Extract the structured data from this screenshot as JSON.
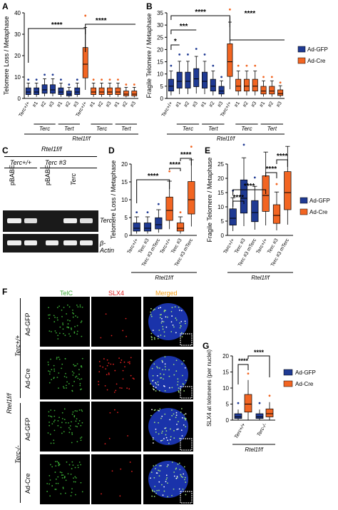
{
  "colors": {
    "gfp": "#1f3a93",
    "cre": "#f26522",
    "cre_dot": "#f26522",
    "gfp_dot": "#1f3a93"
  },
  "panelA": {
    "letter": "A",
    "ylabel": "Telomere Loss / Metaphase",
    "yticks": [
      "0",
      "10",
      "20",
      "30",
      "40"
    ],
    "xlabels": [
      "Terc+/+",
      "#1",
      "#2",
      "#3",
      "#1",
      "#2",
      "#3",
      "Terc+/+",
      "#1",
      "#2",
      "#3",
      "#1",
      "#2",
      "#3"
    ],
    "groups": [
      "Terc",
      "Tert",
      "Terc",
      "Tert"
    ],
    "genotype": "Rtel1f/f",
    "sig": [
      "****",
      "****"
    ]
  },
  "panelB": {
    "letter": "B",
    "ylabel": "Fragile Telomere / Metaphase",
    "yticks": [
      "0",
      "5",
      "10",
      "15",
      "20",
      "25",
      "30",
      "35"
    ],
    "xlabels": [
      "Terc+/+",
      "#1",
      "#2",
      "#3",
      "#1",
      "#2",
      "#3",
      "Terc+/+",
      "#1",
      "#2",
      "#3",
      "#1",
      "#2",
      "#3"
    ],
    "groups": [
      "Terc",
      "Tert",
      "Terc",
      "Tert"
    ],
    "genotype": "Rtel1f/f",
    "sig": [
      "*",
      "***",
      "****",
      "****"
    ],
    "legend": [
      "Ad-GFP",
      "Ad-Cre"
    ]
  },
  "panelC": {
    "letter": "C",
    "genotype": "Rtel1f/f",
    "col1": "Terc+/+",
    "col2": "Terc #3",
    "lanes": [
      "pBABE",
      "pBABE",
      "Terc"
    ],
    "bands": [
      "Terc",
      "β-Actin"
    ]
  },
  "panelD": {
    "letter": "D",
    "ylabel": "Telomere Loss / Metaphase",
    "yticks": [
      "0",
      "5",
      "10",
      "15",
      "20"
    ],
    "xlabels": [
      "Terc+/+",
      "Terc #3",
      "Terc #3 mTerc",
      "Terc+/+",
      "Terc #3",
      "Terc #3 mTerc"
    ],
    "genotype": "Rtel1f/f",
    "sig": [
      "****",
      "****",
      "****"
    ]
  },
  "panelE": {
    "letter": "E",
    "ylabel": "Fragile Telomere / Metaphase",
    "yticks": [
      "0",
      "5",
      "10",
      "15",
      "20",
      "25"
    ],
    "xlabels": [
      "Terc+/+",
      "Terc #3",
      "Terc #3 mTerc",
      "Terc+/+",
      "Terc #3",
      "Terc #3 mTerc"
    ],
    "genotype": "Rtel1f/f",
    "sig": [
      "****",
      "****",
      "****",
      "****"
    ],
    "legend": [
      "Ad-GFP",
      "Ad-Cre"
    ]
  },
  "panelF": {
    "letter": "F",
    "channels": [
      "TelC",
      "SLX4",
      "Merged"
    ],
    "rows": [
      "Ad-GFP",
      "Ad-Cre",
      "Ad-GFP",
      "Ad-Cre"
    ],
    "genotypes": [
      "Terc+/+",
      "Terc-/-"
    ],
    "side": "Rtel1f/f"
  },
  "panelG": {
    "letter": "G",
    "ylabel": "SLX4 at telomeres (per nuclei)",
    "yticks": [
      "0",
      "5",
      "10",
      "15",
      "20"
    ],
    "xlabels": [
      "Terc+/+",
      "Terc-/-"
    ],
    "genotype": "Rtel1f/f",
    "sig": [
      "****",
      "****"
    ],
    "legend": [
      "Ad-GFP",
      "Ad-Cre"
    ]
  },
  "chart_data": [
    {
      "type": "box",
      "panel": "A",
      "ylabel": "Telomere Loss / Metaphase",
      "ylim": [
        0,
        40
      ],
      "series": [
        {
          "name": "Ad-GFP",
          "values": [
            3,
            3,
            4,
            4,
            3,
            2,
            3
          ]
        },
        {
          "name": "Ad-Cre",
          "values": [
            16,
            3,
            3,
            3,
            3,
            2,
            2
          ]
        }
      ]
    },
    {
      "type": "box",
      "panel": "B",
      "ylabel": "Fragile Telomere / Metaphase",
      "ylim": [
        0,
        35
      ],
      "series": [
        {
          "name": "Ad-GFP",
          "values": [
            5,
            7,
            7,
            8,
            7,
            5,
            3
          ]
        },
        {
          "name": "Ad-Cre",
          "values": [
            15,
            5,
            5,
            5,
            3,
            3,
            2
          ]
        }
      ]
    },
    {
      "type": "box",
      "panel": "D",
      "ylabel": "Telomere Loss / Metaphase",
      "ylim": [
        0,
        20
      ],
      "series": [
        {
          "name": "Ad-GFP",
          "values": [
            2,
            2,
            3
          ]
        },
        {
          "name": "Ad-Cre",
          "values": [
            7,
            2,
            10
          ]
        }
      ]
    },
    {
      "type": "box",
      "panel": "E",
      "ylabel": "Fragile Telomere / Metaphase",
      "ylim": [
        0,
        25
      ],
      "series": [
        {
          "name": "Ad-GFP",
          "values": [
            6,
            13,
            8
          ]
        },
        {
          "name": "Ad-Cre",
          "values": [
            14,
            7,
            15
          ]
        }
      ]
    },
    {
      "type": "box",
      "panel": "G",
      "ylabel": "SLX4 at telomeres (per nuclei)",
      "ylim": [
        0,
        20
      ],
      "series": [
        {
          "name": "Ad-GFP",
          "values": [
            1,
            1
          ]
        },
        {
          "name": "Ad-Cre",
          "values": [
            5,
            2
          ]
        }
      ]
    }
  ]
}
